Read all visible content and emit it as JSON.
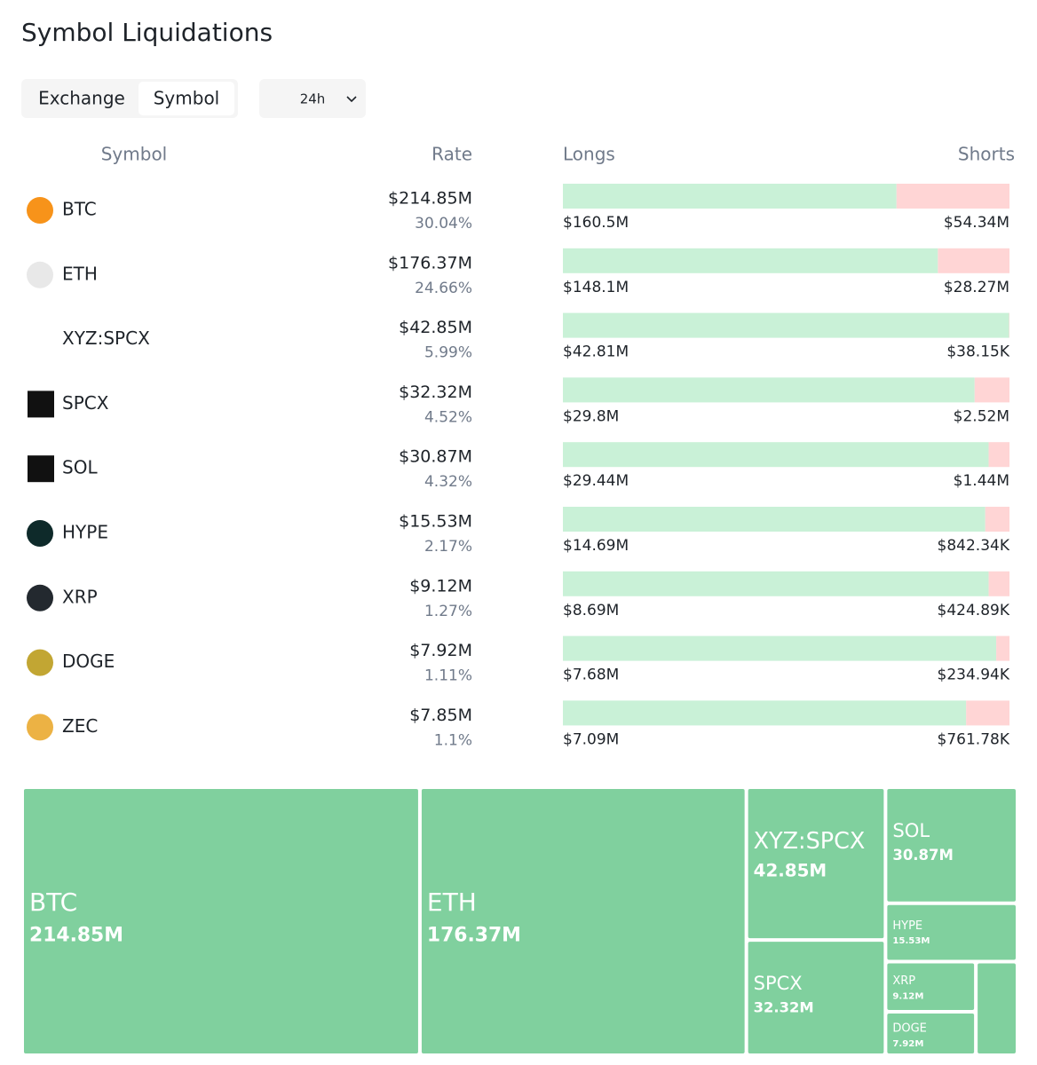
{
  "header": {
    "title": "Symbol Liquidations"
  },
  "tabs": [
    "Exchange",
    "Symbol"
  ],
  "period": "24h",
  "table": {
    "columns": [
      "Symbol",
      "Rate",
      "Longs",
      "Shorts"
    ],
    "rows": [
      {
        "symbol": "BTC",
        "total": "$214.85M",
        "rate": "30.04%",
        "longs": {
          "value": 160500000,
          "label": "$160.5M"
        },
        "shorts": {
          "value": 54340000,
          "label": "$54.34M"
        }
      },
      {
        "symbol": "ETH",
        "total": "$176.37M",
        "rate": "24.66%",
        "longs": {
          "value": 148100000,
          "label": "$148.1M"
        },
        "shorts": {
          "value": 28270000,
          "label": "$28.27M"
        }
      },
      {
        "symbol": "XYZ:SPCX",
        "total": "$42.85M",
        "rate": "5.99%",
        "longs": {
          "value": 42810000,
          "label": "$42.81M"
        },
        "shorts": {
          "value": 38150,
          "label": "$38.15K"
        }
      },
      {
        "symbol": "SPCX",
        "total": "$32.32M",
        "rate": "4.52%",
        "longs": {
          "value": 29800000,
          "label": "$29.8M"
        },
        "shorts": {
          "value": 2520000,
          "label": "$2.52M"
        }
      },
      {
        "symbol": "SOL",
        "total": "$30.87M",
        "rate": "4.32%",
        "longs": {
          "value": 29440000,
          "label": "$29.44M"
        },
        "shorts": {
          "value": 1440000,
          "label": "$1.44M"
        }
      },
      {
        "symbol": "HYPE",
        "total": "$15.53M",
        "rate": "2.17%",
        "longs": {
          "value": 14690000,
          "label": "$14.69M"
        },
        "shorts": {
          "value": 842340,
          "label": "$842.34K"
        }
      },
      {
        "symbol": "XRP",
        "total": "$9.12M",
        "rate": "1.27%",
        "longs": {
          "value": 8690000,
          "label": "$8.69M"
        },
        "shorts": {
          "value": 424890,
          "label": "$424.89K"
        }
      },
      {
        "symbol": "DOGE",
        "total": "$7.92M",
        "rate": "1.11%",
        "longs": {
          "value": 7680000,
          "label": "$7.68M"
        },
        "shorts": {
          "value": 234940,
          "label": "$234.94K"
        }
      },
      {
        "symbol": "ZEC",
        "total": "$7.85M",
        "rate": "1.1%",
        "longs": {
          "value": 7090000,
          "label": "$7.09M"
        },
        "shorts": {
          "value": 761780,
          "label": "$761.78K"
        }
      }
    ]
  },
  "treemap": {
    "cells": [
      {
        "name": "BTC",
        "value": 214850000,
        "label": "214.85M"
      },
      {
        "name": "ETH",
        "value": 176370000,
        "label": "176.37M"
      },
      {
        "name": "XYZ:SPCX",
        "value": 42850000,
        "label": "42.85M"
      },
      {
        "name": "SPCX",
        "value": 32320000,
        "label": "32.32M"
      },
      {
        "name": "SOL",
        "value": 30870000,
        "label": "30.87M"
      },
      {
        "name": "HYPE",
        "value": 15530000,
        "label": "15.53M"
      },
      {
        "name": "XRP",
        "value": 9120000,
        "label": "9.12M"
      },
      {
        "name": "DOGE",
        "value": 7920000,
        "label": "7.92M"
      },
      {
        "value": 7850000
      }
    ]
  }
}
